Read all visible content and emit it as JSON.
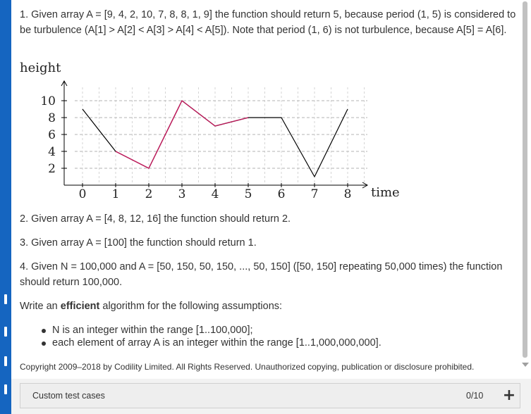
{
  "problem": {
    "example1": "1. Given array A = [9, 4, 2, 10, 7, 8, 8, 1, 9] the function should return 5, because period (1, 5) is considered to be turbulence (A[1] > A[2] < A[3] > A[4] < A[5]). Note that period (1, 6) is not turbulence, because A[5] = A[6].",
    "example2": "2. Given array A = [4, 8, 12, 16] the function should return 2.",
    "example3": "3. Given array A = [100] the function should return 1.",
    "example4": "4. Given N = 100,000 and A = [50, 150, 50, 150, ..., 50, 150] ([50, 150] repeating 50,000 times) the function should return 100,000.",
    "instruction_prefix": "Write an ",
    "instruction_bold": "efficient",
    "instruction_suffix": " algorithm for the following assumptions:",
    "assumptions": [
      "N is an integer within the range [1..100,000];",
      "each element of array A is an integer within the range [1..1,000,000,000]."
    ],
    "copyright": "Copyright 2009–2018 by Codility Limited. All Rights Reserved. Unauthorized copying, publication or disclosure prohibited."
  },
  "chart_data": {
    "type": "line",
    "ylabel": "height",
    "xlabel": "time",
    "x": [
      0,
      1,
      2,
      3,
      4,
      5,
      6,
      7,
      8
    ],
    "x_ticks": [
      "0",
      "1",
      "2",
      "3",
      "4",
      "5",
      "6",
      "7",
      "8"
    ],
    "y_ticks": [
      "2",
      "4",
      "6",
      "8",
      "10"
    ],
    "xlim": [
      0,
      8
    ],
    "ylim": [
      0,
      10
    ],
    "grid": "horizontal dashed",
    "series": [
      {
        "values": [
          9,
          4,
          2,
          10,
          7,
          8,
          8,
          1,
          9
        ],
        "color": "#000000"
      }
    ],
    "highlight": {
      "from_x": 1,
      "to_x": 5,
      "color": "#c2185b"
    }
  },
  "footer": {
    "custom_test_label": "Custom test cases",
    "count": "0/10",
    "add_symbol": "+"
  },
  "colors": {
    "accent_bar": "#1565c0",
    "highlight": "#c2185b"
  }
}
